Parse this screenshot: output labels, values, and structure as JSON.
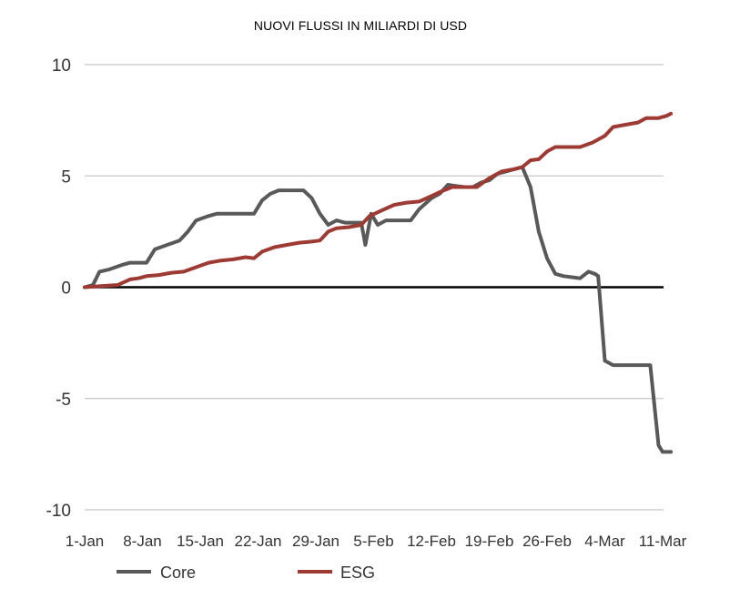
{
  "chart_data": {
    "type": "line",
    "title": "NUOVI FLUSSI IN MILIARDI DI USD",
    "xlabel": "",
    "ylabel": "",
    "ylim": [
      -10,
      10
    ],
    "yticks": [
      10,
      5,
      0,
      -5,
      -10
    ],
    "ytick_labels": [
      "10",
      "5",
      "0",
      "-5",
      "-10"
    ],
    "x_tick_labels": [
      "1-Jan",
      "8-Jan",
      "15-Jan",
      "22-Jan",
      "29-Jan",
      "5-Feb",
      "12-Feb",
      "19-Feb",
      "26-Feb",
      "4-Mar",
      "11-Mar"
    ],
    "x_tick_days": [
      0,
      7,
      14,
      21,
      28,
      35,
      42,
      49,
      56,
      63,
      70
    ],
    "xlim_days": [
      0,
      70
    ],
    "grid": true,
    "legend_position": "bottom-left",
    "series": [
      {
        "name": "Core",
        "color": "#595959",
        "points": [
          [
            0,
            0.0
          ],
          [
            1,
            0.1
          ],
          [
            1.8,
            0.7
          ],
          [
            3,
            0.8
          ],
          [
            4.5,
            1.0
          ],
          [
            5.5,
            1.1
          ],
          [
            6.5,
            1.1
          ],
          [
            7.5,
            1.1
          ],
          [
            8.5,
            1.7
          ],
          [
            10,
            1.9
          ],
          [
            11.5,
            2.1
          ],
          [
            12.5,
            2.5
          ],
          [
            13.5,
            3.0
          ],
          [
            15,
            3.2
          ],
          [
            16,
            3.3
          ],
          [
            17.5,
            3.3
          ],
          [
            19,
            3.3
          ],
          [
            20.5,
            3.3
          ],
          [
            21.5,
            3.9
          ],
          [
            22.5,
            4.2
          ],
          [
            23.5,
            4.35
          ],
          [
            25,
            4.35
          ],
          [
            26.5,
            4.35
          ],
          [
            27.5,
            4.0
          ],
          [
            28.5,
            3.3
          ],
          [
            29.5,
            2.8
          ],
          [
            30.5,
            3.0
          ],
          [
            31.5,
            2.9
          ],
          [
            33.5,
            2.9
          ],
          [
            34,
            1.9
          ],
          [
            34.7,
            3.3
          ],
          [
            35.5,
            2.8
          ],
          [
            36.5,
            3.0
          ],
          [
            38,
            3.0
          ],
          [
            39.5,
            3.0
          ],
          [
            40.5,
            3.5
          ],
          [
            42,
            4.0
          ],
          [
            43,
            4.2
          ],
          [
            44,
            4.6
          ],
          [
            45,
            4.55
          ],
          [
            46,
            4.5
          ],
          [
            47,
            4.5
          ],
          [
            48,
            4.7
          ],
          [
            49,
            4.8
          ],
          [
            50,
            5.1
          ],
          [
            51,
            5.2
          ],
          [
            52,
            5.3
          ],
          [
            53,
            5.4
          ],
          [
            54,
            4.5
          ],
          [
            55,
            2.5
          ],
          [
            56,
            1.3
          ],
          [
            57,
            0.6
          ],
          [
            58,
            0.5
          ],
          [
            59,
            0.45
          ],
          [
            60,
            0.4
          ],
          [
            61,
            0.7
          ],
          [
            61.8,
            0.6
          ],
          [
            62.2,
            0.5
          ],
          [
            63,
            -3.3
          ],
          [
            64,
            -3.5
          ],
          [
            65,
            -3.5
          ],
          [
            67,
            -3.5
          ],
          [
            68.5,
            -3.5
          ],
          [
            69.5,
            -7.1
          ],
          [
            70,
            -7.4
          ],
          [
            71,
            -7.4
          ]
        ]
      },
      {
        "name": "ESG",
        "color": "#9d3a34",
        "points": [
          [
            0,
            0.0
          ],
          [
            2,
            0.05
          ],
          [
            4,
            0.1
          ],
          [
            5.5,
            0.35
          ],
          [
            6.5,
            0.4
          ],
          [
            7.5,
            0.5
          ],
          [
            9,
            0.55
          ],
          [
            10.5,
            0.65
          ],
          [
            12,
            0.7
          ],
          [
            13.5,
            0.9
          ],
          [
            15,
            1.1
          ],
          [
            16.5,
            1.2
          ],
          [
            18,
            1.25
          ],
          [
            19.5,
            1.35
          ],
          [
            20.5,
            1.3
          ],
          [
            21.5,
            1.6
          ],
          [
            23,
            1.8
          ],
          [
            24.5,
            1.9
          ],
          [
            26,
            2.0
          ],
          [
            27.5,
            2.05
          ],
          [
            28.5,
            2.1
          ],
          [
            29.5,
            2.5
          ],
          [
            30.5,
            2.65
          ],
          [
            32,
            2.7
          ],
          [
            33.5,
            2.8
          ],
          [
            34.5,
            3.2
          ],
          [
            36,
            3.45
          ],
          [
            37.5,
            3.7
          ],
          [
            39,
            3.8
          ],
          [
            40.5,
            3.85
          ],
          [
            42,
            4.1
          ],
          [
            43.5,
            4.35
          ],
          [
            44.5,
            4.5
          ],
          [
            46,
            4.5
          ],
          [
            47.5,
            4.5
          ],
          [
            49,
            4.9
          ],
          [
            50.5,
            5.2
          ],
          [
            52,
            5.3
          ],
          [
            53,
            5.4
          ],
          [
            54,
            5.7
          ],
          [
            55,
            5.75
          ],
          [
            56,
            6.1
          ],
          [
            57,
            6.3
          ],
          [
            58.5,
            6.3
          ],
          [
            60,
            6.3
          ],
          [
            61.5,
            6.5
          ],
          [
            63,
            6.8
          ],
          [
            64,
            7.2
          ],
          [
            65.5,
            7.3
          ],
          [
            67,
            7.4
          ],
          [
            68,
            7.6
          ],
          [
            69.5,
            7.6
          ],
          [
            70.5,
            7.7
          ],
          [
            71,
            7.8
          ]
        ]
      }
    ]
  }
}
